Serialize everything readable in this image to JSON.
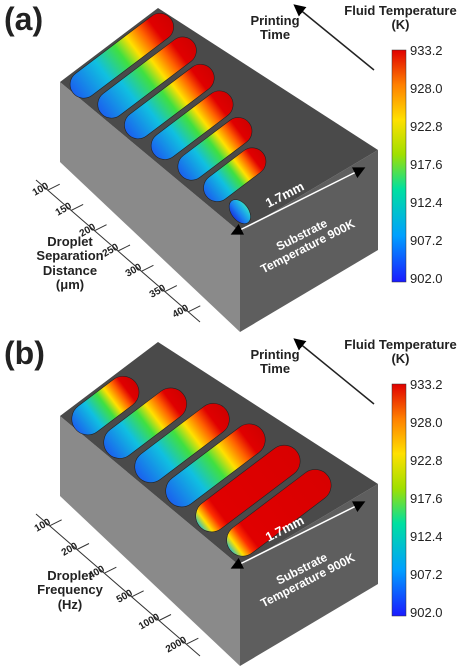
{
  "panels": [
    {
      "label": "(a)",
      "arrow_label": "Printing Time",
      "colorbar": {
        "title": "Fluid Temperature (K)",
        "ticks": [
          "933.2",
          "928.0",
          "922.8",
          "917.6",
          "912.4",
          "907.2",
          "902.0"
        ]
      },
      "axis": {
        "title": "Droplet Separation Distance (μm)",
        "ticks": [
          "100",
          "150",
          "200",
          "250",
          "300",
          "350",
          "400"
        ]
      },
      "scale_label": "1.7mm",
      "substrate_label": "Substrate Temperature 900K"
    },
    {
      "label": "(b)",
      "arrow_label": "Printing Time",
      "colorbar": {
        "title": "Fluid Temperature (K)",
        "ticks": [
          "933.2",
          "928.0",
          "922.8",
          "917.6",
          "912.4",
          "907.2",
          "902.0"
        ]
      },
      "axis": {
        "title": "Droplet Frequency (Hz)",
        "ticks": [
          "100",
          "200",
          "400",
          "500",
          "1000",
          "2000"
        ]
      },
      "scale_label": "1.7mm",
      "substrate_label": "Substrate Temperature 900K"
    }
  ]
}
